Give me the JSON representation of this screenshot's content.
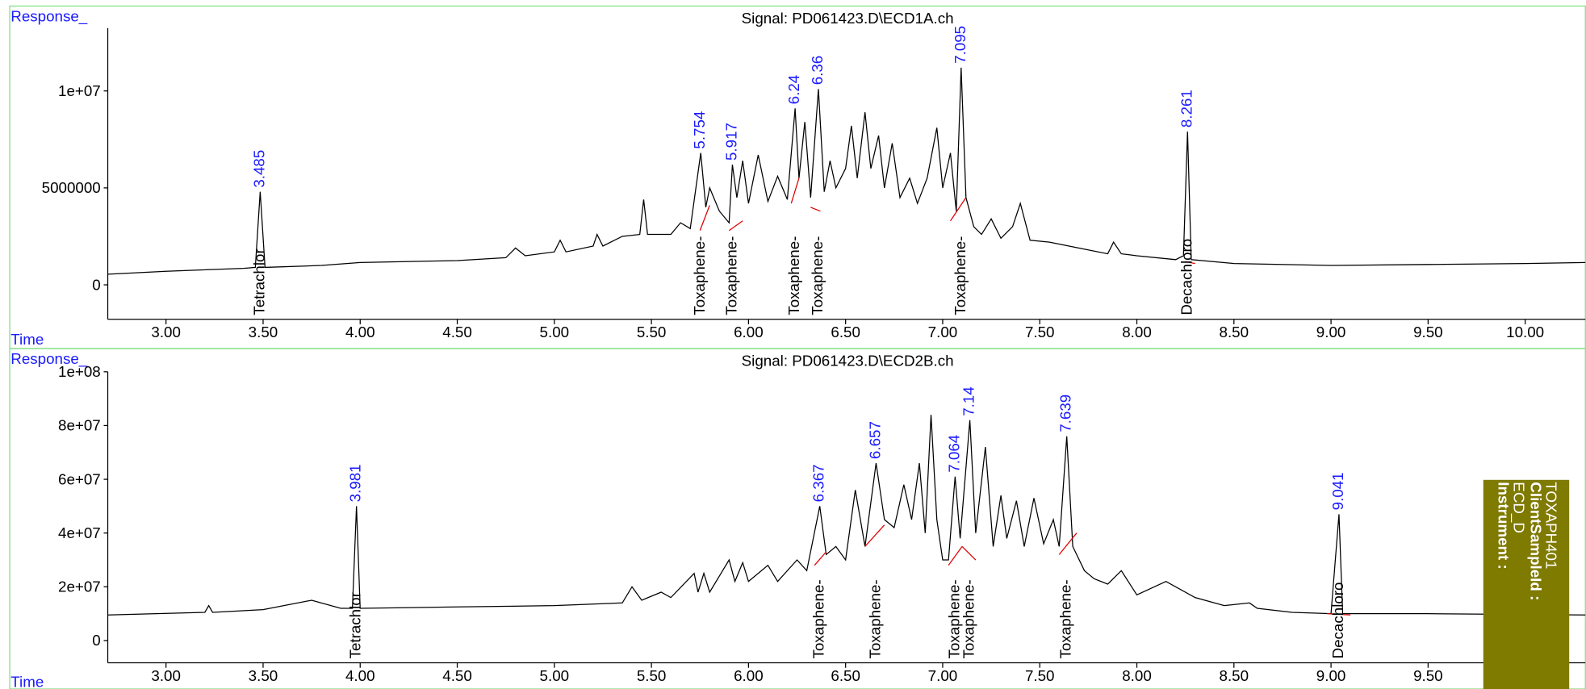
{
  "chart_data": [
    {
      "type": "line",
      "title": "Signal: PD061423.D\\ECD1A.ch",
      "y_label": "Response_",
      "x_label": "Time",
      "xlim": [
        2.7,
        10.31
      ],
      "ylim": [
        -1670000,
        13230000
      ],
      "xticks": [
        {
          "value": 3,
          "label": "3.00"
        },
        {
          "value": 3.5,
          "label": "3.50"
        },
        {
          "value": 4,
          "label": "4.00"
        },
        {
          "value": 4.5,
          "label": "4.50"
        },
        {
          "value": 5,
          "label": "5.00"
        },
        {
          "value": 5.5,
          "label": "5.50"
        },
        {
          "value": 6,
          "label": "6.00"
        },
        {
          "value": 6.5,
          "label": "6.50"
        },
        {
          "value": 7,
          "label": "7.00"
        },
        {
          "value": 7.5,
          "label": "7.50"
        },
        {
          "value": 8,
          "label": "8.00"
        },
        {
          "value": 8.5,
          "label": "8.50"
        },
        {
          "value": 9,
          "label": "9.00"
        },
        {
          "value": 9.5,
          "label": "9.50"
        },
        {
          "value": 10,
          "label": "10.00"
        }
      ],
      "yticks": [
        0,
        5000000,
        {
          "value": 10000000,
          "label": "1e+07"
        }
      ],
      "series": [
        {
          "color": "#000000",
          "x": [
            2.7,
            3.0,
            3.4,
            3.46,
            3.485,
            3.51,
            3.8,
            4.0,
            4.5,
            4.75,
            4.8,
            4.85,
            5.0,
            5.03,
            5.06,
            5.2,
            5.22,
            5.25,
            5.35,
            5.44,
            5.46,
            5.48,
            5.6,
            5.65,
            5.7,
            5.754,
            5.78,
            5.8,
            5.85,
            5.9,
            5.917,
            5.94,
            5.97,
            6.0,
            6.05,
            6.1,
            6.15,
            6.2,
            6.24,
            6.26,
            6.29,
            6.32,
            6.36,
            6.39,
            6.42,
            6.45,
            6.5,
            6.53,
            6.56,
            6.6,
            6.63,
            6.67,
            6.7,
            6.74,
            6.78,
            6.83,
            6.87,
            6.92,
            6.97,
            7.0,
            7.04,
            7.07,
            7.095,
            7.12,
            7.16,
            7.2,
            7.25,
            7.3,
            7.36,
            7.4,
            7.45,
            7.55,
            7.7,
            7.85,
            7.88,
            7.92,
            8.0,
            8.2,
            8.24,
            8.261,
            8.28,
            8.5,
            9.0,
            9.5,
            10.0,
            10.31
          ],
          "values": [
            550000.0,
            700000.0,
            850000.0,
            900000.0,
            4800000.0,
            900000.0,
            1000000.0,
            1150000.0,
            1250000.0,
            1400000.0,
            1900000.0,
            1500000.0,
            1700000.0,
            2300000.0,
            1700000.0,
            2000000.0,
            2600000.0,
            2000000.0,
            2500000.0,
            2600000.0,
            4400000.0,
            2600000.0,
            2600000.0,
            3200000.0,
            2900000.0,
            6800000.0,
            4000000.0,
            5000000.0,
            3800000.0,
            3200000.0,
            6200000.0,
            4500000.0,
            6400000.0,
            4200000.0,
            6700000.0,
            4300000.0,
            5600000.0,
            4400000.0,
            9100000.0,
            5500000.0,
            8400000.0,
            4500000.0,
            10100000.0,
            4800000.0,
            6400000.0,
            5000000.0,
            6000000.0,
            8200000.0,
            5500000.0,
            8900000.0,
            6000000.0,
            7700000.0,
            5000000.0,
            7300000.0,
            4500000.0,
            5500000.0,
            4200000.0,
            5500000.0,
            8100000.0,
            5000000.0,
            6800000.0,
            3800000.0,
            11200000.0,
            4500000.0,
            3000000.0,
            2600000.0,
            3400000.0,
            2400000.0,
            3000000.0,
            4200000.0,
            2300000.0,
            2200000.0,
            1900000.0,
            1600000.0,
            2200000.0,
            1600000.0,
            1500000.0,
            1300000.0,
            1500000.0,
            7900000.0,
            1300000.0,
            1100000.0,
            1000000.0,
            1050000.0,
            1100000.0,
            1150000.0
          ]
        }
      ],
      "peaks": [
        {
          "rt": 3.485,
          "name": "Tetrachlor"
        },
        {
          "rt": 5.754,
          "name": "Toxaphene-"
        },
        {
          "rt": 5.917,
          "name": "Toxaphene-"
        },
        {
          "rt": 6.24,
          "name": "Toxaphene-"
        },
        {
          "rt": 6.36,
          "name": "Toxaphene-"
        },
        {
          "rt": 7.095,
          "name": "Toxaphene-"
        },
        {
          "rt": 8.261,
          "name": "Decachloro"
        }
      ],
      "baseline_color": "#e00000",
      "baselines": [
        {
          "x": [
            5.75,
            5.8
          ],
          "y": [
            2800000.0,
            4100000.0
          ]
        },
        {
          "x": [
            5.9,
            5.97
          ],
          "y": [
            2800000.0,
            3300000.0
          ]
        },
        {
          "x": [
            6.22,
            6.26
          ],
          "y": [
            4200000.0,
            5500000.0
          ]
        },
        {
          "x": [
            6.32,
            6.37
          ],
          "y": [
            4000000.0,
            3800000.0
          ]
        },
        {
          "x": [
            7.04,
            7.12
          ],
          "y": [
            3300000.0,
            4500000.0
          ]
        },
        {
          "x": [
            8.25,
            8.3
          ],
          "y": [
            1200000.0,
            1100000.0
          ]
        }
      ]
    },
    {
      "type": "line",
      "title": "Signal: PD061423.D\\ECD2B.ch",
      "y_label": "Response_",
      "x_label": "Time",
      "xlim": [
        2.7,
        10.31
      ],
      "ylim": [
        -7500000,
        100000000
      ],
      "xticks": [
        {
          "value": 3,
          "label": "3.00"
        },
        {
          "value": 3.5,
          "label": "3.50"
        },
        {
          "value": 4,
          "label": "4.00"
        },
        {
          "value": 4.5,
          "label": "4.50"
        },
        {
          "value": 5,
          "label": "5.00"
        },
        {
          "value": 5.5,
          "label": "5.50"
        },
        {
          "value": 6,
          "label": "6.00"
        },
        {
          "value": 6.5,
          "label": "6.50"
        },
        {
          "value": 7,
          "label": "7.00"
        },
        {
          "value": 7.5,
          "label": "7.50"
        },
        {
          "value": 8,
          "label": "8.00"
        },
        {
          "value": 8.5,
          "label": "8.50"
        },
        {
          "value": 9,
          "label": "9.00"
        },
        {
          "value": 9.5,
          "label": "9.50"
        }
      ],
      "yticks": [
        0,
        {
          "value": 20000000,
          "label": "2e+07"
        },
        {
          "value": 40000000,
          "label": "4e+07"
        },
        {
          "value": 60000000,
          "label": "6e+07"
        },
        {
          "value": 80000000,
          "label": "8e+07"
        },
        {
          "value": 100000000,
          "label": "1e+08"
        }
      ],
      "series": [
        {
          "color": "#000000",
          "x": [
            2.7,
            3.2,
            3.22,
            3.24,
            3.5,
            3.75,
            3.9,
            3.96,
            3.981,
            4.0,
            4.5,
            5.0,
            5.35,
            5.4,
            5.45,
            5.55,
            5.6,
            5.72,
            5.74,
            5.77,
            5.8,
            5.9,
            5.93,
            5.97,
            6.0,
            6.1,
            6.15,
            6.25,
            6.3,
            6.367,
            6.4,
            6.45,
            6.5,
            6.55,
            6.6,
            6.657,
            6.7,
            6.75,
            6.8,
            6.84,
            6.88,
            6.91,
            6.94,
            6.97,
            7.0,
            7.03,
            7.064,
            7.09,
            7.14,
            7.17,
            7.22,
            7.26,
            7.3,
            7.33,
            7.38,
            7.42,
            7.47,
            7.52,
            7.57,
            7.6,
            7.639,
            7.67,
            7.73,
            7.78,
            7.85,
            7.92,
            8.0,
            8.15,
            8.3,
            8.45,
            8.58,
            8.62,
            8.8,
            9.0,
            9.041,
            9.06,
            9.5,
            10.31
          ],
          "values": [
            9500000.0,
            10500000.0,
            13000000.0,
            10500000.0,
            11500000.0,
            15000000.0,
            12000000.0,
            12000000.0,
            50000000.0,
            12000000.0,
            12500000.0,
            13000000.0,
            14000000.0,
            20000000.0,
            15000000.0,
            18000000.0,
            16000000.0,
            25000000.0,
            18000000.0,
            25000000.0,
            18000000.0,
            30000000.0,
            22000000.0,
            29000000.0,
            22000000.0,
            28000000.0,
            22000000.0,
            30000000.0,
            26000000.0,
            50000000.0,
            32000000.0,
            35000000.0,
            30000000.0,
            56000000.0,
            35000000.0,
            66000000.0,
            45000000.0,
            42000000.0,
            58000000.0,
            45000000.0,
            66000000.0,
            40000000.0,
            84000000.0,
            45000000.0,
            30000000.0,
            30000000.0,
            61000000.0,
            38000000.0,
            82000000.0,
            40000000.0,
            72000000.0,
            35000000.0,
            54000000.0,
            38000000.0,
            52000000.0,
            35000000.0,
            53000000.0,
            36000000.0,
            45000000.0,
            35000000.0,
            76000000.0,
            35000000.0,
            26000000.0,
            23000000.0,
            21000000.0,
            26000000.0,
            17000000.0,
            22000000.0,
            16000000.0,
            13000000.0,
            14000000.0,
            12000000.0,
            10500000.0,
            10000000.0,
            47000000.0,
            10000000.0,
            10000000.0,
            9500000.0
          ]
        }
      ],
      "peaks": [
        {
          "rt": 3.981,
          "name": "Tetrachlor"
        },
        {
          "rt": 6.367,
          "name": "Toxaphene-"
        },
        {
          "rt": 6.657,
          "name": "Toxaphene-"
        },
        {
          "rt": 7.064,
          "name": "Toxaphene-"
        },
        {
          "rt": 7.14,
          "name": "Toxaphene-"
        },
        {
          "rt": 7.639,
          "name": "Toxaphene-"
        },
        {
          "rt": 9.041,
          "name": "Decachloro"
        }
      ],
      "baseline_color": "#e00000",
      "baselines": [
        {
          "x": [
            6.34,
            6.4
          ],
          "y": [
            28000000.0,
            33000000.0
          ]
        },
        {
          "x": [
            6.6,
            6.7
          ],
          "y": [
            35000000.0,
            43000000.0
          ]
        },
        {
          "x": [
            7.03,
            7.1
          ],
          "y": [
            28000000.0,
            35000000.0
          ]
        },
        {
          "x": [
            7.1,
            7.17
          ],
          "y": [
            35000000.0,
            30000000.0
          ]
        },
        {
          "x": [
            7.6,
            7.69
          ],
          "y": [
            32000000.0,
            40000000.0
          ]
        },
        {
          "x": [
            8.98,
            9.1
          ],
          "y": [
            10000000.0,
            9500000.0
          ]
        }
      ]
    }
  ],
  "side_panel": {
    "lines": [
      "Instrument :",
      "ECD_D",
      "ClientSampleId :",
      "TOXAPH401"
    ]
  }
}
